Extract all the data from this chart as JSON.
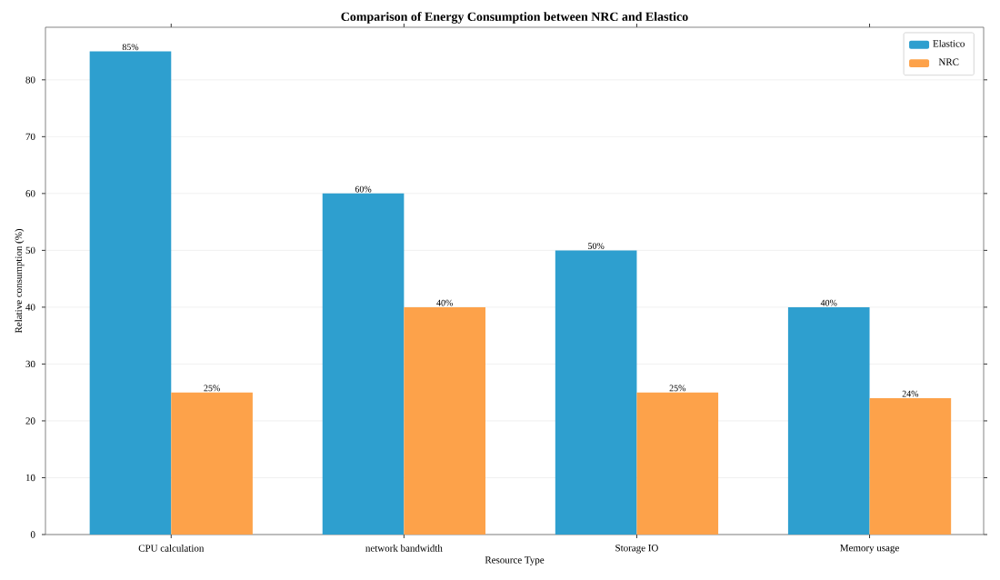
{
  "chart_data": {
    "type": "bar",
    "title": "Comparison of Energy Consumption between NRC and Elastico",
    "xlabel": "Resource Type",
    "ylabel": "Relative consumption (%)",
    "categories": [
      "CPU calculation",
      "network bandwidth",
      "Storage IO",
      "Memory usage"
    ],
    "series": [
      {
        "name": "Elastico",
        "color": "#2e9fcf",
        "values": [
          85,
          60,
          50,
          40
        ],
        "value_labels": [
          "85%",
          "60%",
          "50%",
          "40%"
        ]
      },
      {
        "name": "NRC",
        "color": "#fda24a",
        "values": [
          25,
          40,
          25,
          24
        ],
        "value_labels": [
          "25%",
          "40%",
          "25%",
          "24%"
        ]
      }
    ],
    "ylim": [
      0,
      89.25
    ],
    "yticks": [
      0,
      10,
      20,
      30,
      40,
      50,
      60,
      70,
      80
    ],
    "grid": "y",
    "legend": "top right"
  }
}
